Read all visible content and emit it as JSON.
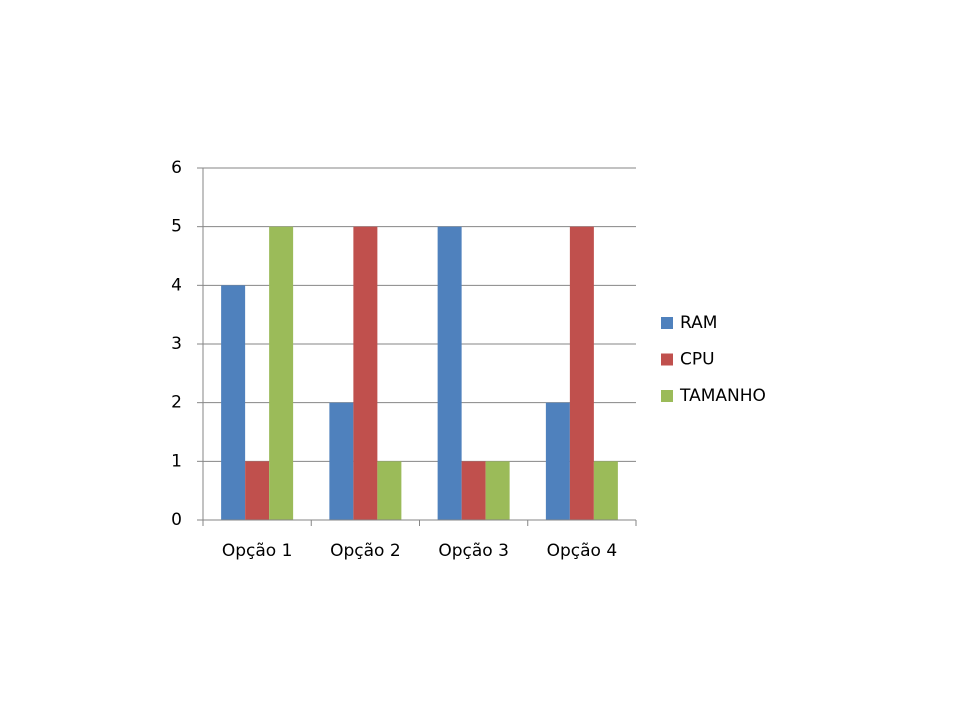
{
  "chart_data": {
    "type": "bar",
    "categories": [
      "Opção 1",
      "Opção 2",
      "Opção 3",
      "Opção 4"
    ],
    "series": [
      {
        "name": "RAM",
        "color": "#4f81bd",
        "values": [
          4,
          2,
          5,
          2
        ]
      },
      {
        "name": "CPU",
        "color": "#c0504d",
        "values": [
          1,
          5,
          1,
          5
        ]
      },
      {
        "name": "TAMANHO",
        "color": "#9bbb59",
        "values": [
          5,
          1,
          1,
          1
        ]
      }
    ],
    "ylim": [
      0,
      6
    ],
    "yticks": [
      0,
      1,
      2,
      3,
      4,
      5,
      6
    ],
    "grid": true,
    "legend": "right"
  }
}
